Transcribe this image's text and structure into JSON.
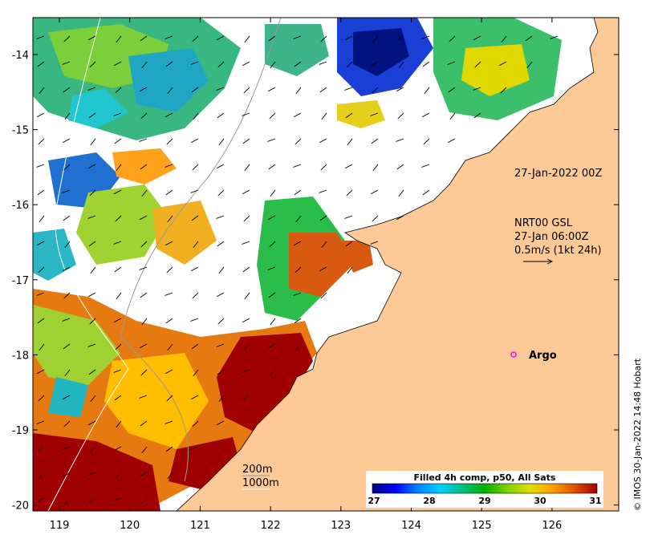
{
  "map": {
    "x_ticks": [
      "119",
      "120",
      "121",
      "122",
      "123",
      "124",
      "125",
      "126"
    ],
    "y_ticks": [
      "-14",
      "-15",
      "-16",
      "-17",
      "-18",
      "-19",
      "-20"
    ],
    "land_color": "#fcc997",
    "no_data_color": "#ffffff"
  },
  "annotations": {
    "timestamp": "27-Jan-2022 00Z",
    "current_product": "NRT00 GSL",
    "current_time": "27-Jan 06:00Z",
    "current_scale": "0.5m/s (1kt 24h)",
    "contour_200": "200m",
    "contour_1000": "1000m",
    "argo_label": "Argo",
    "argo_color": "#ff00ff"
  },
  "colorbar": {
    "title": "Filled 4h comp, p50, All Sats",
    "ticks": [
      "27",
      "28",
      "29",
      "30",
      "31"
    ],
    "colors": [
      "#00007f",
      "#0000ff",
      "#0080ff",
      "#00d0ff",
      "#00c080",
      "#00b000",
      "#80d000",
      "#e0e000",
      "#ffa000",
      "#e05000",
      "#a00000"
    ]
  },
  "credit": "© IMOS 30-Jan-2022 14:48 Hobart"
}
